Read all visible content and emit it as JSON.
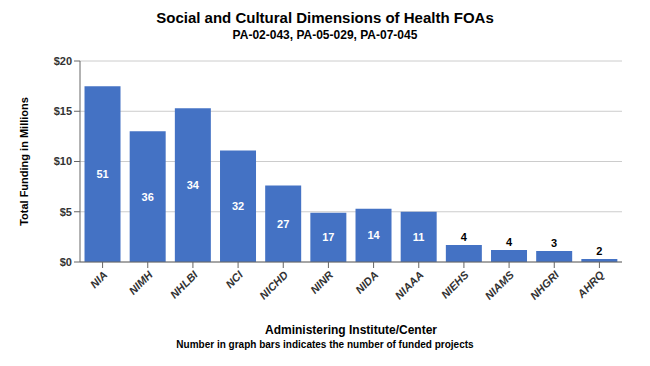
{
  "chart_data": {
    "type": "bar",
    "title": "Social and Cultural Dimensions of Health FOAs",
    "subtitle": "PA-02-043, PA-05-029, PA-07-045",
    "xlabel": "Administering Institute/Center",
    "ylabel": "Total Funding in Millions",
    "footnote": "Number in graph bars indicates the number of funded projects",
    "categories": [
      "NIA",
      "NIMH",
      "NHLBI",
      "NCI",
      "NICHD",
      "NINR",
      "NIDA",
      "NIAAA",
      "NIEHS",
      "NIAMS",
      "NHGRI",
      "AHRQ"
    ],
    "values": [
      17.5,
      13.0,
      15.3,
      11.1,
      7.6,
      4.9,
      5.3,
      5.0,
      1.7,
      1.2,
      1.1,
      0.3
    ],
    "project_counts": [
      51,
      36,
      34,
      32,
      27,
      17,
      14,
      11,
      4,
      4,
      3,
      2
    ],
    "color": "#4472C4",
    "ylim": [
      0,
      20
    ],
    "yticks": [
      {
        "value": 0,
        "label": "$0"
      },
      {
        "value": 5,
        "label": "$5"
      },
      {
        "value": 10,
        "label": "$10"
      },
      {
        "value": 15,
        "label": "$15"
      },
      {
        "value": 20,
        "label": "$20"
      }
    ],
    "grid": true
  }
}
